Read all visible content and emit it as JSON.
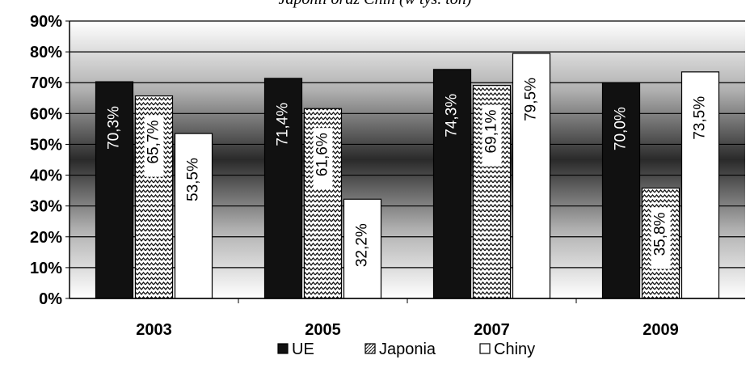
{
  "caption": "Japonii oraz Chin (w tys. ton)",
  "chart_data": {
    "type": "bar",
    "categories": [
      "2003",
      "2005",
      "2007",
      "2009"
    ],
    "series": [
      {
        "name": "UE",
        "values": [
          70.3,
          71.4,
          74.3,
          70.0
        ],
        "labels": [
          "70,3%",
          "71,4%",
          "74,3%",
          "70,0%"
        ],
        "color": "#111111"
      },
      {
        "name": "Japonia",
        "values": [
          65.7,
          61.6,
          69.1,
          35.8
        ],
        "labels": [
          "65,7%",
          "61,6%",
          "69,1%",
          "35,8%"
        ],
        "color": "#9a9a9a"
      },
      {
        "name": "Chiny",
        "values": [
          53.5,
          32.2,
          79.5,
          73.5
        ],
        "labels": [
          "53,5%",
          "32,2%",
          "79,5%",
          "73,5%"
        ],
        "color": "#ffffff"
      }
    ],
    "yticks": [
      "0%",
      "10%",
      "20%",
      "30%",
      "40%",
      "50%",
      "60%",
      "70%",
      "80%",
      "90%"
    ],
    "ylim": [
      0,
      90
    ],
    "grid": true,
    "legend_position": "bottom"
  }
}
